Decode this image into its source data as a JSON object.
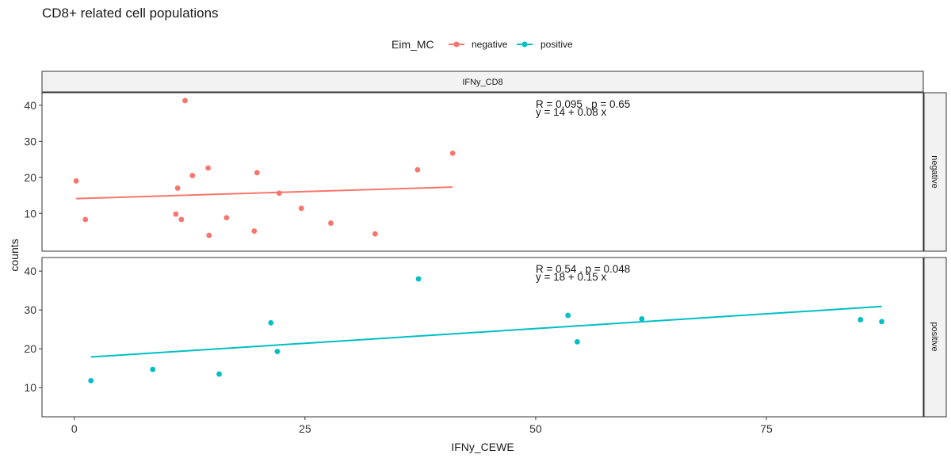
{
  "title": "CD8+ related cell populations",
  "legend": {
    "title": "Eim_MC",
    "items": [
      {
        "label": "negative",
        "color": "#F8766D"
      },
      {
        "label": "positive",
        "color": "#00BFC4"
      }
    ]
  },
  "facet_column": "IFNy_CD8",
  "chart_data": {
    "type": "scatter",
    "xlabel": "IFNy_CEWE",
    "ylabel": "counts",
    "xlim": [
      -3.5,
      92
    ],
    "x_ticks": [
      0,
      25,
      50,
      75
    ],
    "x_tick_labels": [
      "0",
      "25",
      "50",
      "75"
    ],
    "y_ticks": [
      10,
      20,
      30,
      40
    ],
    "y_tick_labels": [
      "10",
      "20",
      "30",
      "40"
    ],
    "grid": false,
    "legend_position": "top",
    "panels": [
      {
        "row_label": "negative",
        "color": "#F8766D",
        "ylim": [
          -0.5,
          43.5
        ],
        "stat_line1": "R = 0.095 , p = 0.65",
        "stat_line2": "y = 14 + 0.08 x",
        "fit": {
          "x": [
            0.2,
            41.0
          ],
          "y": [
            14.1,
            17.3
          ]
        },
        "points": [
          {
            "x": 0.2,
            "y": 19.0
          },
          {
            "x": 1.2,
            "y": 8.3
          },
          {
            "x": 11.0,
            "y": 9.8
          },
          {
            "x": 11.2,
            "y": 17.0
          },
          {
            "x": 11.6,
            "y": 8.3
          },
          {
            "x": 12.0,
            "y": 41.3
          },
          {
            "x": 12.8,
            "y": 20.5
          },
          {
            "x": 14.5,
            "y": 22.6
          },
          {
            "x": 14.6,
            "y": 3.9
          },
          {
            "x": 16.5,
            "y": 8.8
          },
          {
            "x": 19.5,
            "y": 5.1
          },
          {
            "x": 19.8,
            "y": 21.3
          },
          {
            "x": 22.2,
            "y": 15.6
          },
          {
            "x": 24.6,
            "y": 11.4
          },
          {
            "x": 27.8,
            "y": 7.3
          },
          {
            "x": 32.6,
            "y": 4.3
          },
          {
            "x": 37.2,
            "y": 22.1
          },
          {
            "x": 41.0,
            "y": 26.7
          }
        ]
      },
      {
        "row_label": "positive",
        "color": "#00BFC4",
        "ylim": [
          2.5,
          43.5
        ],
        "stat_line1": "R = 0.54 , p = 0.048",
        "stat_line2": "y = 18 + 0.15 x",
        "fit": {
          "x": [
            1.8,
            87.5
          ],
          "y": [
            17.9,
            30.9
          ]
        },
        "points": [
          {
            "x": 1.8,
            "y": 11.8
          },
          {
            "x": 8.5,
            "y": 14.7
          },
          {
            "x": 15.7,
            "y": 13.5
          },
          {
            "x": 21.3,
            "y": 26.7
          },
          {
            "x": 22.0,
            "y": 19.3
          },
          {
            "x": 37.3,
            "y": 38.0
          },
          {
            "x": 53.5,
            "y": 28.6
          },
          {
            "x": 54.5,
            "y": 21.8
          },
          {
            "x": 61.5,
            "y": 27.7
          },
          {
            "x": 85.2,
            "y": 27.5
          },
          {
            "x": 87.5,
            "y": 27.0
          }
        ]
      }
    ]
  }
}
